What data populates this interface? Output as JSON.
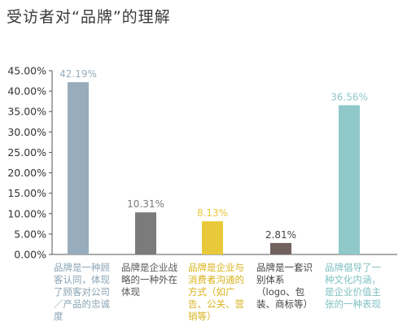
{
  "title": "受访者对“品牌”的理解",
  "chart_data": {
    "type": "bar",
    "title": "受访者对“品牌”的理解",
    "categories": [
      "品牌是一种顾客认同，体现了顾客对公司／产品的忠诚度",
      "品牌是企业战略的一种外在体现",
      "品牌是企业与消费者沟通的方式（如广告、公关、营销等）",
      "品牌是一套识别体系（logo、包装、商标等）",
      "品牌倡导了一种文化内涵，是企业价值主张的一种表现"
    ],
    "values": [
      42.19,
      10.31,
      8.13,
      2.81,
      36.56
    ],
    "value_labels": [
      "42.19%",
      "10.31%",
      "8.13%",
      "2.81%",
      "36.56%"
    ],
    "bar_colors": [
      "#98adbc",
      "#7b7b7b",
      "#e8c93a",
      "#71625f",
      "#8fc8c9"
    ],
    "ylim": [
      0,
      45
    ],
    "yticks": [
      "0.00%",
      "5.00%",
      "10.00%",
      "15.00%",
      "20.00%",
      "25.00%",
      "30.00%",
      "35.00%",
      "40.00%",
      "45.00%"
    ],
    "grid": false,
    "xlabel": "",
    "ylabel": ""
  }
}
